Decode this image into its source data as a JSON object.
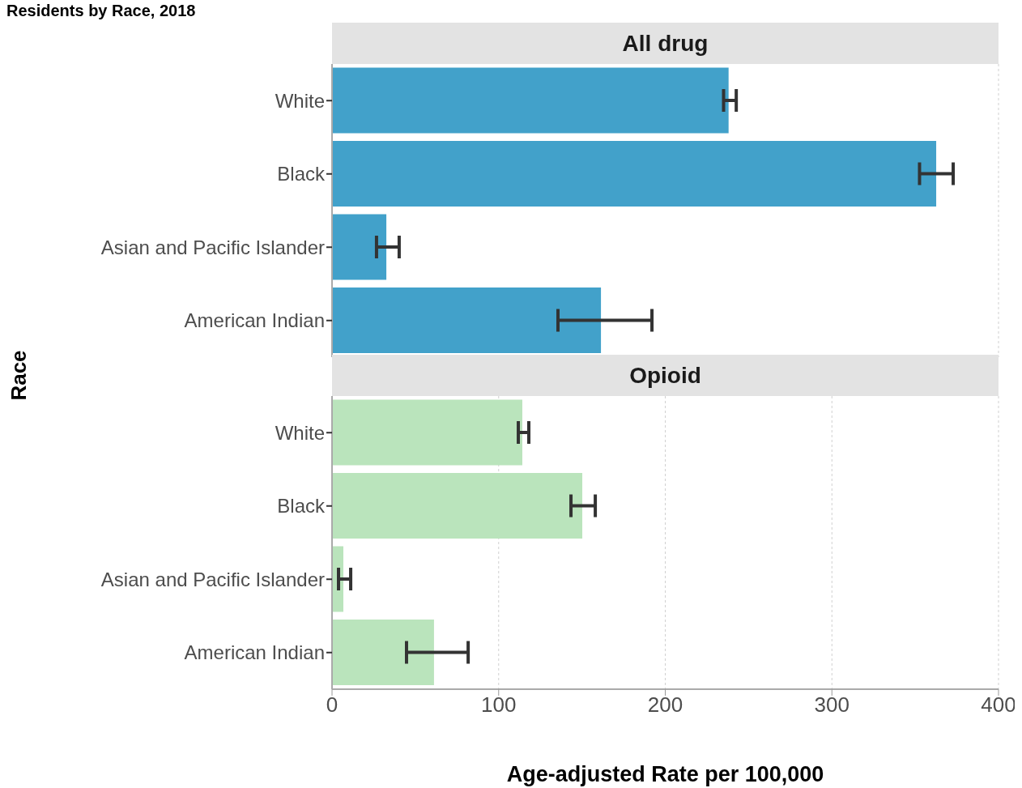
{
  "chart_data": [
    {
      "type": "bar",
      "title": "Residents by Race, 2018",
      "subtitle": "All drug",
      "ylabel": "Race",
      "orientation": "horizontal",
      "categories": [
        "White",
        "Black",
        "Asian and Pacific Islander",
        "American Indian"
      ],
      "values": [
        238,
        362.6,
        32.6,
        161.4
      ],
      "color": "#42a1ca",
      "errors": [
        [
          235,
          242.6
        ],
        [
          352.6,
          372.8
        ],
        [
          26.7,
          40.3
        ],
        [
          135.6,
          192
        ]
      ],
      "xlim": [
        0,
        400
      ],
      "xticks": [
        0,
        100,
        200,
        300,
        400
      ],
      "grid": "x",
      "tick_labels": "y"
    },
    {
      "type": "bar",
      "subtitle": "Opioid",
      "xlabel": "Age-adjusted Rate per 100,000",
      "orientation": "horizontal",
      "categories": [
        "White",
        "Black",
        "Asian and Pacific Islander",
        "American Indian"
      ],
      "values": [
        114.2,
        150.2,
        6.8,
        61.2
      ],
      "color": "#bae4bc",
      "errors": [
        [
          111.8,
          118.1
        ],
        [
          143.4,
          158
        ],
        [
          3.9,
          11.2
        ],
        [
          44.7,
          81.7
        ]
      ],
      "xlim": [
        0,
        400
      ],
      "xticks": [
        0,
        100,
        200,
        300,
        400
      ],
      "grid": "x"
    }
  ]
}
